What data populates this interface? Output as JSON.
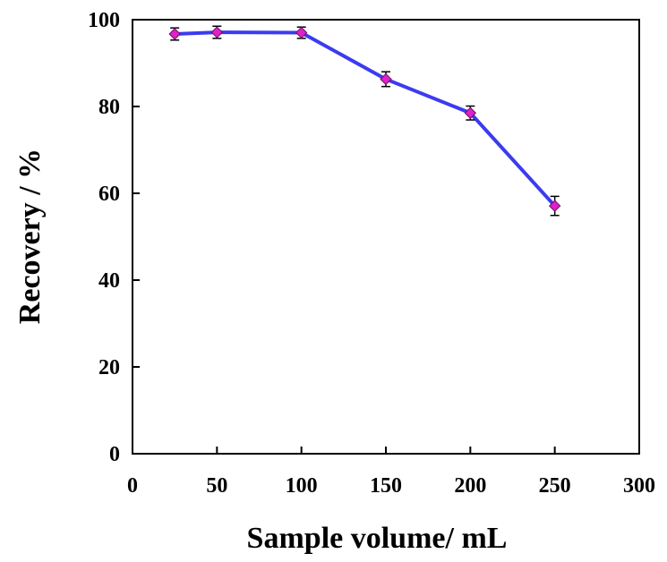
{
  "chart_data": {
    "type": "line",
    "title": "",
    "xlabel": "Sample volume/ mL",
    "ylabel": "Recovery / %",
    "xlim": [
      0,
      300
    ],
    "ylim": [
      0,
      100
    ],
    "xticks": [
      0,
      50,
      100,
      150,
      200,
      250,
      300
    ],
    "yticks": [
      0,
      20,
      40,
      60,
      80,
      100
    ],
    "grid": false,
    "legend": "none",
    "series": [
      {
        "x": [
          25,
          50,
          100,
          150,
          200,
          250
        ],
        "y": [
          96.7,
          97.1,
          97.0,
          86.3,
          78.5,
          57.1
        ],
        "error": [
          1.4,
          1.4,
          1.3,
          1.7,
          1.6,
          2.2
        ],
        "line_color": "#3b3bf0",
        "marker_color": "#e020c8",
        "marker": "diamond"
      }
    ]
  }
}
